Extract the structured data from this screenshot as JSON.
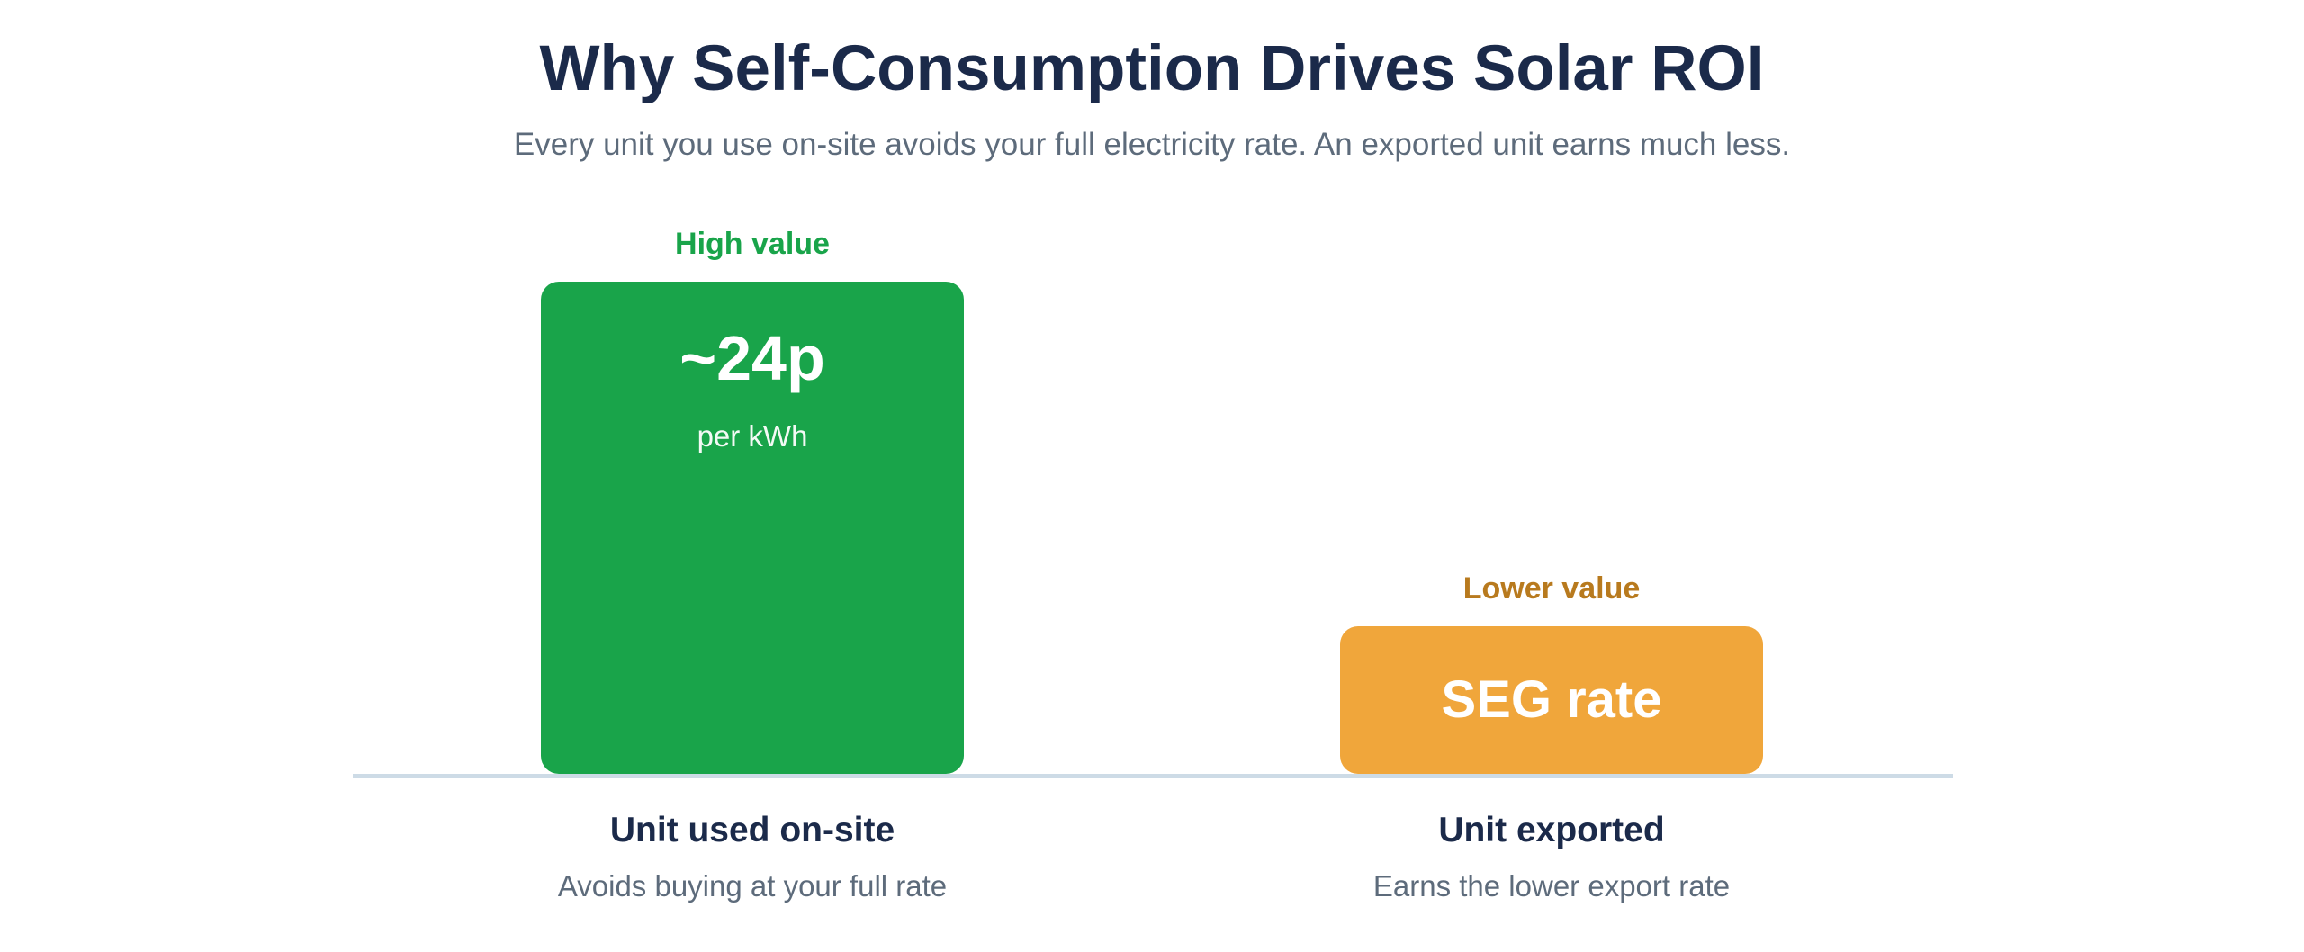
{
  "header": {
    "title": "Why Self-Consumption Drives Solar ROI",
    "subtitle": "Every unit you use on-site avoids your full electricity rate. An exported unit earns much less."
  },
  "colors": {
    "onsite": "#19a44a",
    "export": "#f0a63b",
    "onsite_tag": "#19a44a",
    "export_tag": "#b87a1e",
    "baseline": "#cddbe6"
  },
  "chart_data": {
    "type": "bar",
    "title": "Why Self-Consumption Drives Solar ROI",
    "subtitle": "Every unit you use on-site avoids your full electricity rate. An exported unit earns much less.",
    "categories": [
      "Unit used on-site",
      "Unit exported"
    ],
    "descriptions": [
      "Avoids buying at your full rate",
      "Earns the lower export rate"
    ],
    "tags": [
      "High value",
      "Lower value"
    ],
    "bar_labels": [
      "~24p",
      "SEG rate"
    ],
    "bar_sublabels": [
      "per kWh",
      ""
    ],
    "values": [
      24,
      7.2
    ],
    "ylim": [
      0,
      24
    ],
    "grid": false,
    "legend": "none"
  }
}
